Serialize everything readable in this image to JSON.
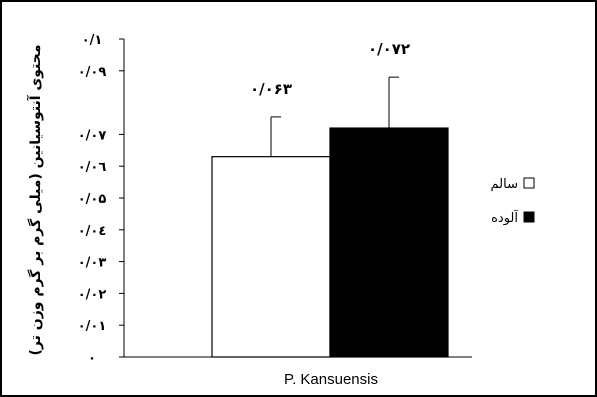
{
  "chart_data": {
    "type": "bar",
    "title": "",
    "ylabel": "محتوی آنتوسیانین (میلی گرم بر گرم وزن تر)",
    "xlabel": "",
    "categories": [
      "P. Kansuensis"
    ],
    "series": [
      {
        "name": "سالم",
        "values": [
          0.063
        ],
        "error": [
          0.0125
        ],
        "data_label": "۰/۰۶۳",
        "color": "#ffffff"
      },
      {
        "name": "آلوده",
        "values": [
          0.072
        ],
        "error": [
          0.016
        ],
        "data_label": "۰/۰۷۲",
        "color": "#000000"
      }
    ],
    "ylim": [
      0,
      0.1
    ],
    "yticks": [
      {
        "value": 0,
        "label": "۰"
      },
      {
        "value": 0.01,
        "label": "۰/۰۱"
      },
      {
        "value": 0.02,
        "label": "۰/۰۲"
      },
      {
        "value": 0.03,
        "label": "۰/۰۳"
      },
      {
        "value": 0.04,
        "label": "۰/۰٤"
      },
      {
        "value": 0.05,
        "label": "۰/۰۵"
      },
      {
        "value": 0.06,
        "label": "۰/۰٦"
      },
      {
        "value": 0.07,
        "label": "۰/۰۷"
      },
      {
        "value": 0.09,
        "label": "۰/۰۹"
      },
      {
        "value": 0.1,
        "label": "۰/۱"
      }
    ],
    "grid": false,
    "legend_position": "right"
  }
}
